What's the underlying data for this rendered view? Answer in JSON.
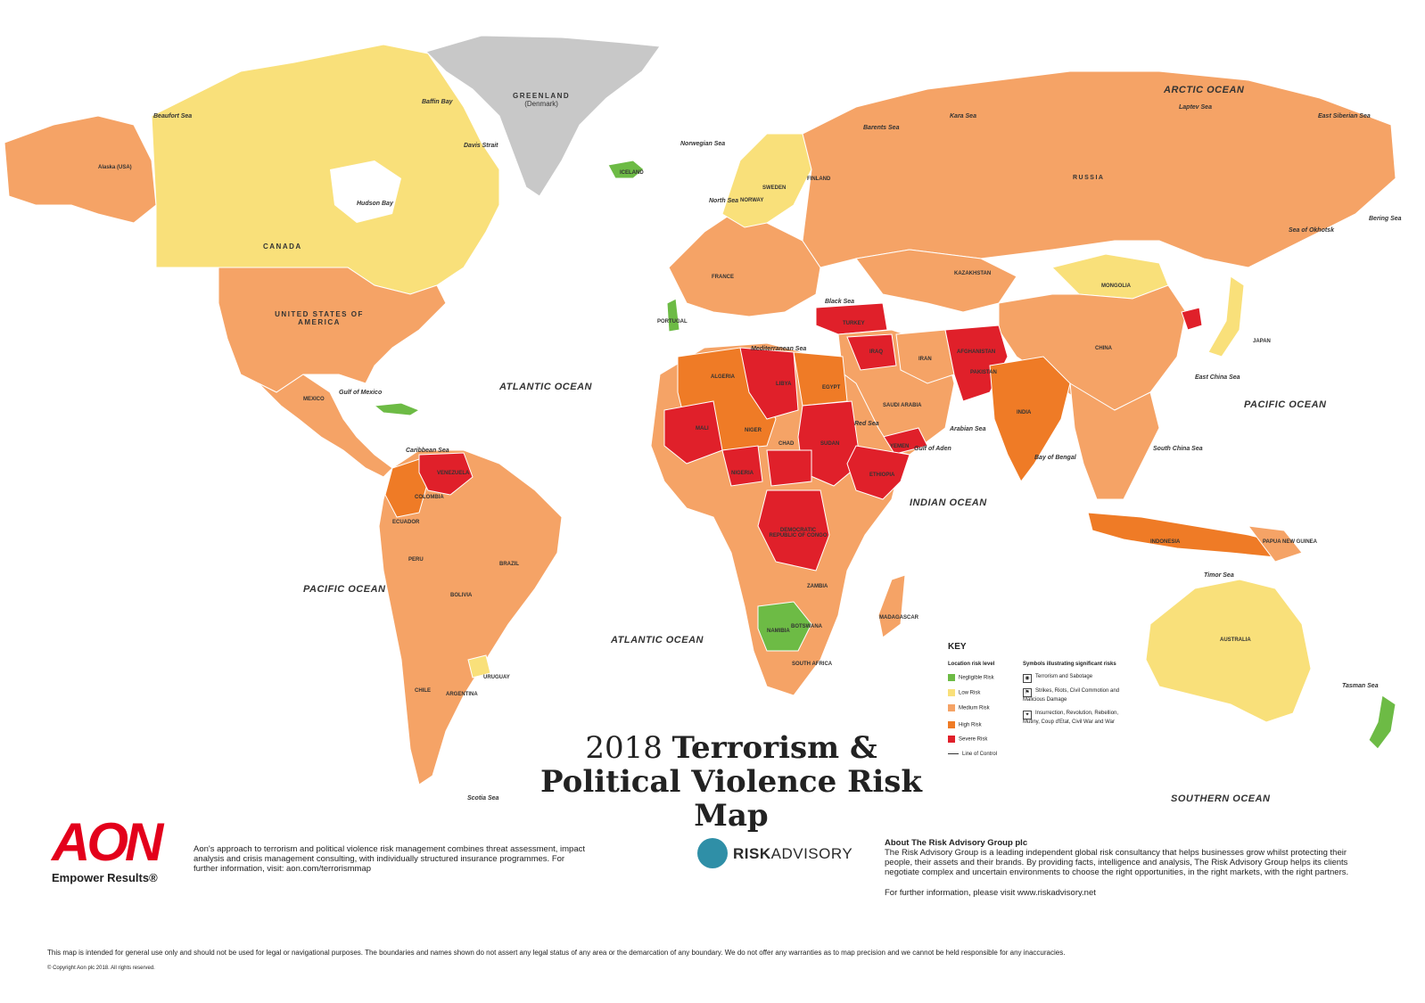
{
  "title": {
    "year": "2018",
    "line1_rest": "Terrorism &",
    "line2": "Political Violence Risk Map"
  },
  "colors": {
    "negligible": "#6dbb45",
    "low": "#f9e07a",
    "medium": "#f5a366",
    "high": "#ef7b26",
    "severe": "#e0202a",
    "no_data": "#c8c8c8",
    "ocean": "#ffffff"
  },
  "oceans": {
    "arctic": "ARCTIC OCEAN",
    "atlantic_north": "ATLANTIC OCEAN",
    "atlantic_south": "ATLANTIC OCEAN",
    "pacific_west": "PACIFIC OCEAN",
    "pacific_east": "PACIFIC OCEAN",
    "indian": "INDIAN OCEAN",
    "southern": "SOUTHERN OCEAN"
  },
  "seas": {
    "beaufort": "Beaufort Sea",
    "baffin": "Baffin Bay",
    "davis": "Davis Strait",
    "hudson": "Hudson Bay",
    "norwegian": "Norwegian Sea",
    "barents": "Barents Sea",
    "kara": "Kara Sea",
    "laptev": "Laptev Sea",
    "east_siberian": "East Siberian Sea",
    "bering": "Bering Sea",
    "okhotsk": "Sea of Okhotsk",
    "north": "North Sea",
    "black": "Black Sea",
    "mediterranean": "Mediterranean Sea",
    "red": "Red Sea",
    "arabian": "Arabian Sea",
    "bengal": "Bay of Bengal",
    "scs": "South China Sea",
    "ecs": "East China Sea",
    "timor": "Timor Sea",
    "tasman": "Tasman Sea",
    "caribbean": "Caribbean Sea",
    "gulf_mexico": "Gulf of Mexico",
    "gulf_aden": "Gulf of Aden",
    "scotia": "Scotia Sea"
  },
  "countries": {
    "greenland": "GREENLAND",
    "greenland_sub": "(Denmark)",
    "alaska": "Alaska (USA)",
    "canada": "CANADA",
    "usa": "UNITED STATES OF AMERICA",
    "mexico": "MEXICO",
    "brazil": "BRAZIL",
    "argentina": "ARGENTINA",
    "colombia": "COLOMBIA",
    "venezuela": "VENEZUELA",
    "peru": "PERU",
    "bolivia": "BOLIVIA",
    "chile": "CHILE",
    "ecuador": "ECUADOR",
    "uruguay": "URUGUAY",
    "russia": "RUSSIA",
    "china": "CHINA",
    "mongolia": "MONGOLIA",
    "kazakhstan": "KAZAKHSTAN",
    "india": "INDIA",
    "australia": "AUSTRALIA",
    "indonesia": "INDONESIA",
    "japan": "JAPAN",
    "algeria": "ALGERIA",
    "libya": "LIBYA",
    "egypt": "EGYPT",
    "mali": "MALI",
    "niger": "NIGER",
    "chad": "CHAD",
    "sudan": "SUDAN",
    "nigeria": "NIGERIA",
    "ethiopia": "ETHIOPIA",
    "drc": "DEMOCRATIC REPUBLIC OF CONGO",
    "south_africa": "SOUTH AFRICA",
    "namibia": "NAMIBIA",
    "botswana": "BOTSWANA",
    "zambia": "ZAMBIA",
    "turkey": "TURKEY",
    "iran": "IRAN",
    "iraq": "IRAQ",
    "saudi": "SAUDI ARABIA",
    "afghanistan": "AFGHANISTAN",
    "pakistan": "PAKISTAN",
    "iceland": "ICELAND",
    "sweden": "SWEDEN",
    "finland": "FINLAND",
    "norway": "NORWAY",
    "france": "FRANCE",
    "portugal": "PORTUGAL",
    "yemen": "YEMEN",
    "somalia": "SOMALIA",
    "madagascar": "MADAGASCAR",
    "png": "PAPUA NEW GUINEA"
  },
  "key": {
    "title": "KEY",
    "level_heading": "Location risk level",
    "levels": [
      "Negligible Risk",
      "Low Risk",
      "Medium Risk",
      "High Risk",
      "Severe Risk"
    ],
    "line_of_control": "Line of Control",
    "symbols_heading": "Symbols illustrating significant risks",
    "symbols": [
      "Terrorism and Sabotage",
      "Strikes, Riots, Civil Commotion and Malicious Damage",
      "Insurrection, Revolution, Rebellion, Mutiny, Coup d'Etat, Civil War and War"
    ]
  },
  "aon": {
    "logo": "AON",
    "tagline": "Empower Results®",
    "description": "Aon's approach to terrorism and political violence risk management combines threat assessment, impact analysis and crisis management consulting, with individually structured insurance programmes. For further information, visit: aon.com/terrorismmap"
  },
  "risk_advisory": {
    "logo_bold": "RISK",
    "logo_rest": "ADVISORY",
    "about_heading": "About The Risk Advisory Group plc",
    "about_body": "The Risk Advisory Group is a leading independent global risk consultancy that helps businesses grow whilst protecting their people, their assets and their brands.  By providing facts, intelligence and analysis, The Risk Advisory Group helps its clients negotiate complex and uncertain environments to choose the right opportunities, in the right markets, with the right partners.",
    "about_more": "For further information, please visit www.riskadvisory.net"
  },
  "disclaimer": "This map is intended for general use only and should not be used for legal or navigational purposes. The boundaries and names shown do not assert any legal status of any area or the demarcation of any boundary. We do not offer any warranties as to map precision and we cannot be held responsible for any inaccuracies.",
  "copyright": "© Copyright Aon plc 2018. All rights reserved."
}
